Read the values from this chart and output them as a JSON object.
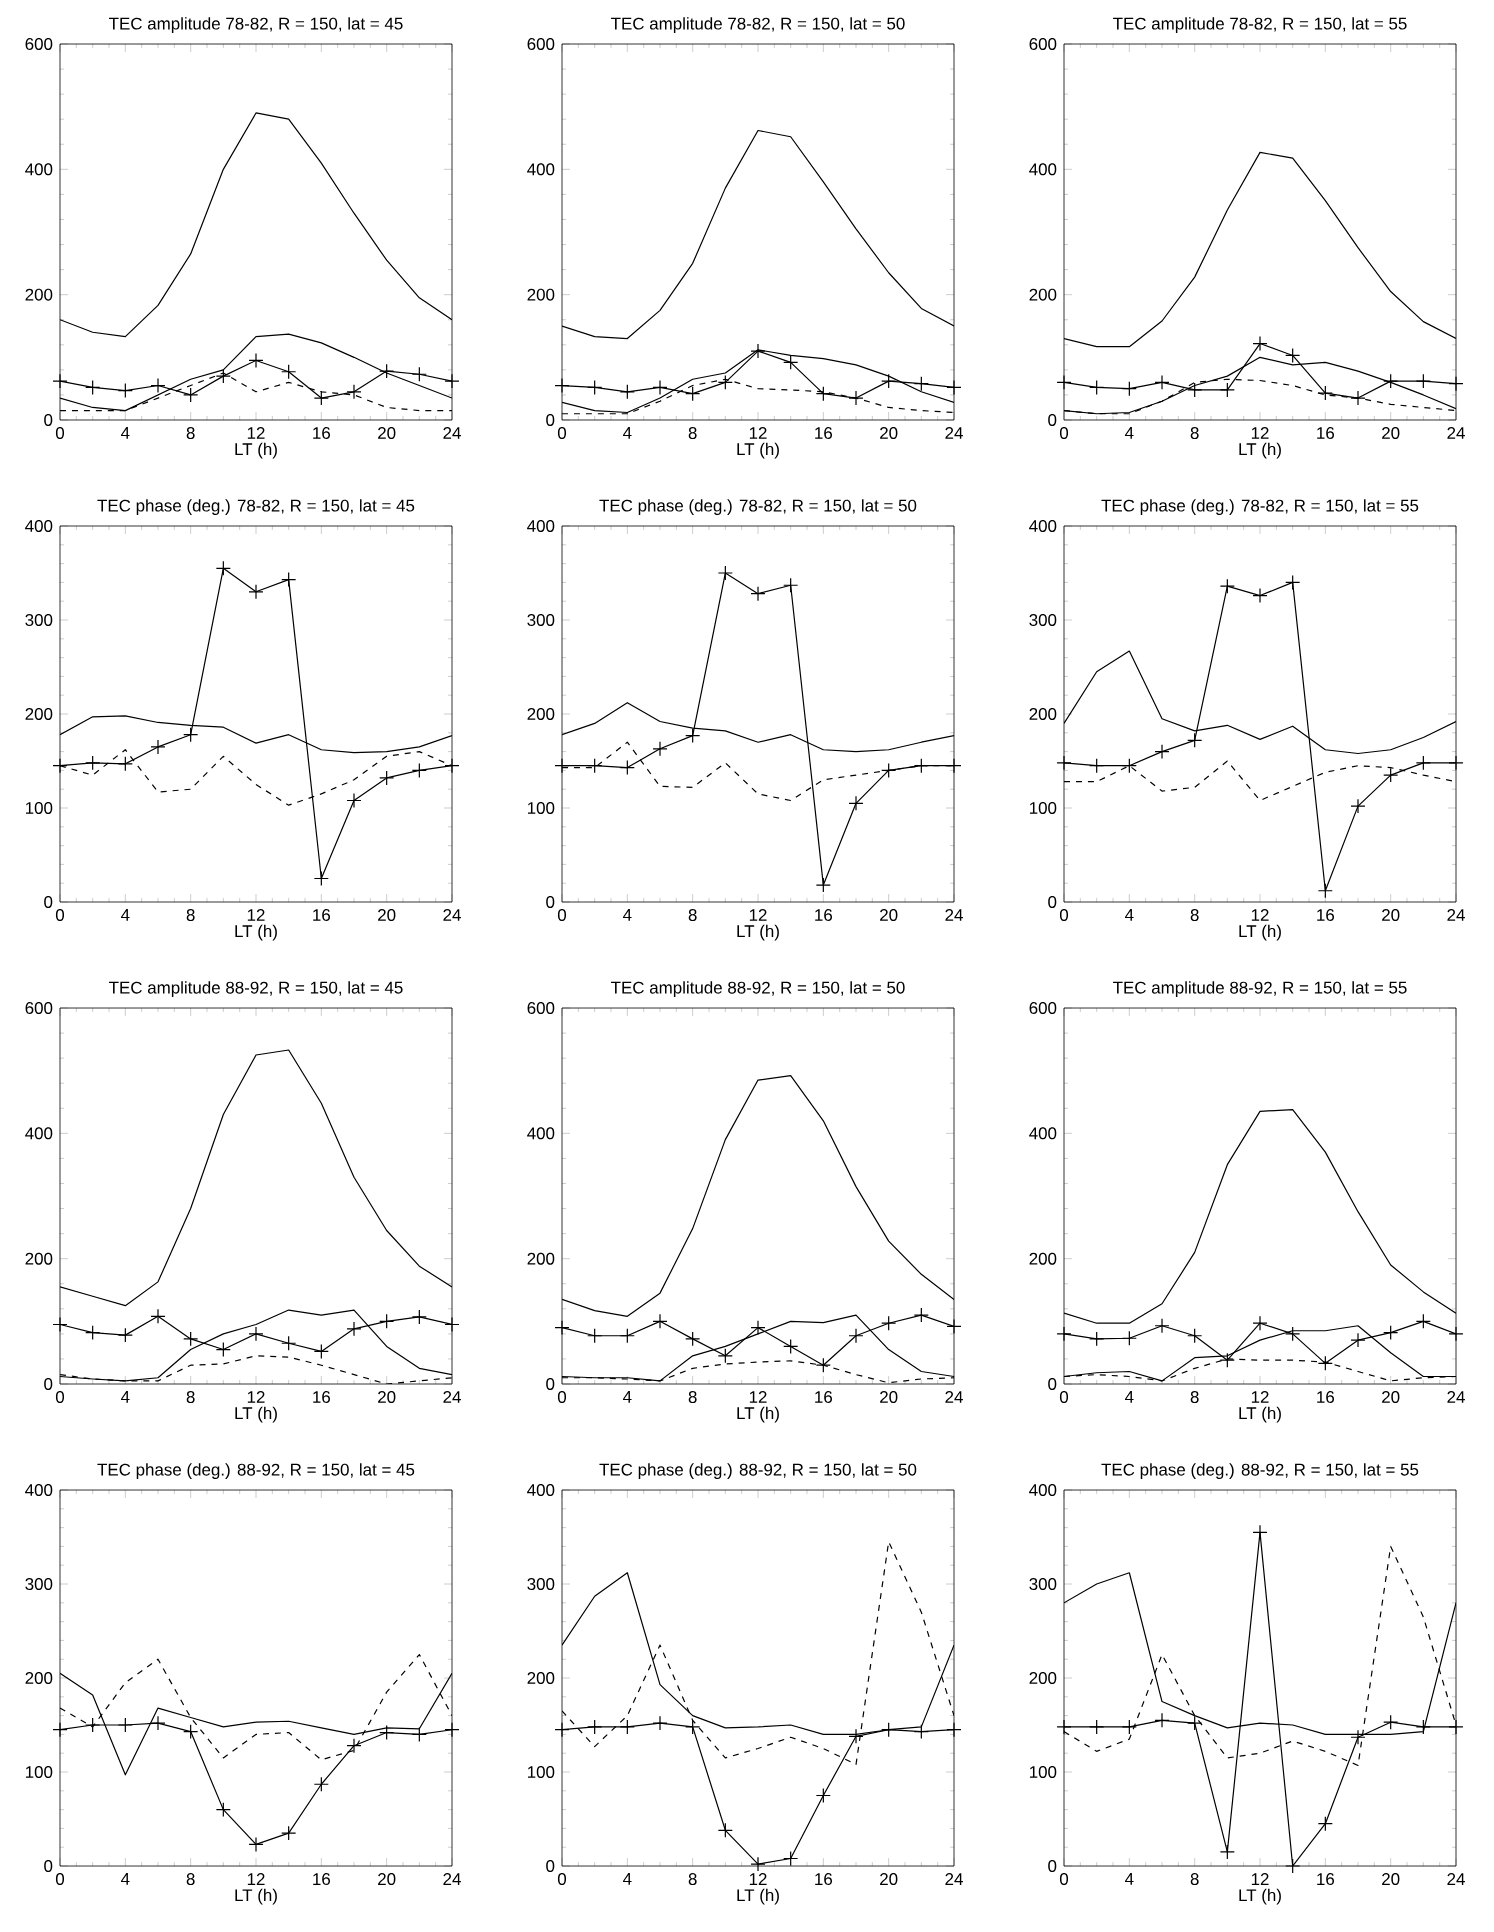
{
  "chart_data": [
    {
      "type": "line",
      "title": "TEC amplitude 78-82, R = 150, lat = 45",
      "xlabel": "LT (h)",
      "x": [
        0,
        2,
        4,
        6,
        8,
        10,
        12,
        14,
        16,
        18,
        20,
        22,
        24
      ],
      "xlim": [
        0,
        24
      ],
      "xticks": [
        0,
        4,
        8,
        12,
        16,
        20,
        24
      ],
      "ylim": [
        0,
        600
      ],
      "yticks": [
        0,
        200,
        400,
        600
      ],
      "series": [
        {
          "color": "#000000",
          "line_style": "solid",
          "marker": "none",
          "values": [
            160,
            140,
            133,
            183,
            265,
            400,
            490,
            480,
            410,
            330,
            255,
            195,
            160
          ]
        },
        {
          "color": "#000000",
          "line_style": "solid",
          "marker": "none",
          "values": [
            35,
            20,
            15,
            40,
            65,
            80,
            133,
            137,
            123,
            100,
            75,
            55,
            35
          ]
        },
        {
          "color": "#000000",
          "line_style": "dashed",
          "marker": "none",
          "values": [
            15,
            15,
            15,
            35,
            55,
            75,
            45,
            60,
            45,
            40,
            20,
            15,
            15
          ]
        },
        {
          "color": "#000000",
          "line_style": "solid",
          "marker": "cross",
          "values": [
            62,
            52,
            47,
            55,
            40,
            70,
            95,
            77,
            35,
            45,
            78,
            73,
            62
          ]
        }
      ]
    },
    {
      "type": "line",
      "title": "TEC amplitude 78-82, R = 150, lat = 50",
      "xlabel": "LT (h)",
      "x": [
        0,
        2,
        4,
        6,
        8,
        10,
        12,
        14,
        16,
        18,
        20,
        22,
        24
      ],
      "xlim": [
        0,
        24
      ],
      "xticks": [
        0,
        4,
        8,
        12,
        16,
        20,
        24
      ],
      "ylim": [
        0,
        600
      ],
      "yticks": [
        0,
        200,
        400,
        600
      ],
      "series": [
        {
          "color": "#000000",
          "line_style": "solid",
          "marker": "none",
          "values": [
            150,
            133,
            130,
            175,
            250,
            370,
            462,
            452,
            380,
            305,
            235,
            178,
            150
          ]
        },
        {
          "color": "#000000",
          "line_style": "solid",
          "marker": "none",
          "values": [
            28,
            15,
            12,
            35,
            65,
            75,
            112,
            103,
            98,
            88,
            70,
            45,
            28
          ]
        },
        {
          "color": "#000000",
          "line_style": "dashed",
          "marker": "none",
          "values": [
            10,
            10,
            10,
            30,
            55,
            65,
            50,
            48,
            45,
            35,
            20,
            15,
            12
          ]
        },
        {
          "color": "#000000",
          "line_style": "solid",
          "marker": "cross",
          "values": [
            55,
            52,
            45,
            52,
            42,
            60,
            110,
            92,
            42,
            35,
            62,
            58,
            52
          ]
        }
      ]
    },
    {
      "type": "line",
      "title": "TEC amplitude 78-82, R = 150, lat = 55",
      "xlabel": "LT (h)",
      "x": [
        0,
        2,
        4,
        6,
        8,
        10,
        12,
        14,
        16,
        18,
        20,
        22,
        24
      ],
      "xlim": [
        0,
        24
      ],
      "xticks": [
        0,
        4,
        8,
        12,
        16,
        20,
        24
      ],
      "ylim": [
        0,
        600
      ],
      "yticks": [
        0,
        200,
        400,
        600
      ],
      "series": [
        {
          "color": "#000000",
          "line_style": "solid",
          "marker": "none",
          "values": [
            130,
            117,
            117,
            158,
            228,
            335,
            427,
            418,
            350,
            275,
            205,
            157,
            130
          ]
        },
        {
          "color": "#000000",
          "line_style": "solid",
          "marker": "none",
          "values": [
            15,
            10,
            12,
            30,
            55,
            70,
            100,
            88,
            92,
            78,
            60,
            40,
            18
          ]
        },
        {
          "color": "#000000",
          "line_style": "dashed",
          "marker": "none",
          "values": [
            15,
            10,
            10,
            30,
            60,
            65,
            63,
            55,
            40,
            35,
            25,
            20,
            15
          ]
        },
        {
          "color": "#000000",
          "line_style": "solid",
          "marker": "cross",
          "values": [
            60,
            52,
            50,
            60,
            48,
            48,
            122,
            103,
            43,
            35,
            62,
            62,
            58
          ]
        }
      ]
    },
    {
      "type": "line",
      "title": "TEC phase (deg.) 78-82, R = 150, lat = 45",
      "xlabel": "LT (h)",
      "x": [
        0,
        2,
        4,
        6,
        8,
        10,
        12,
        14,
        16,
        18,
        20,
        22,
        24
      ],
      "xlim": [
        0,
        24
      ],
      "xticks": [
        0,
        4,
        8,
        12,
        16,
        20,
        24
      ],
      "ylim": [
        0,
        400
      ],
      "yticks": [
        0,
        100,
        200,
        300,
        400
      ],
      "series": [
        {
          "color": "#000000",
          "line_style": "solid",
          "marker": "none",
          "values": [
            178,
            197,
            198,
            191,
            188,
            186,
            169,
            178,
            162,
            159,
            160,
            165,
            177
          ]
        },
        {
          "color": "#000000",
          "line_style": "dashed",
          "marker": "none",
          "values": [
            145,
            135,
            162,
            117,
            120,
            155,
            125,
            103,
            115,
            130,
            155,
            160,
            145
          ]
        },
        {
          "color": "#000000",
          "line_style": "solid",
          "marker": "cross",
          "values": [
            145,
            148,
            147,
            165,
            178,
            355,
            330,
            343,
            25,
            108,
            132,
            140,
            145
          ]
        }
      ]
    },
    {
      "type": "line",
      "title": "TEC phase (deg.) 78-82, R = 150, lat = 50",
      "xlabel": "LT (h)",
      "x": [
        0,
        2,
        4,
        6,
        8,
        10,
        12,
        14,
        16,
        18,
        20,
        22,
        24
      ],
      "xlim": [
        0,
        24
      ],
      "xticks": [
        0,
        4,
        8,
        12,
        16,
        20,
        24
      ],
      "ylim": [
        0,
        400
      ],
      "yticks": [
        0,
        100,
        200,
        300,
        400
      ],
      "series": [
        {
          "color": "#000000",
          "line_style": "solid",
          "marker": "none",
          "values": [
            178,
            190,
            212,
            192,
            185,
            182,
            170,
            178,
            162,
            160,
            162,
            170,
            177
          ]
        },
        {
          "color": "#000000",
          "line_style": "dashed",
          "marker": "none",
          "values": [
            143,
            143,
            170,
            123,
            122,
            148,
            115,
            108,
            130,
            135,
            140,
            145,
            145
          ]
        },
        {
          "color": "#000000",
          "line_style": "solid",
          "marker": "cross",
          "values": [
            145,
            145,
            143,
            163,
            177,
            350,
            328,
            337,
            18,
            105,
            140,
            145,
            145
          ]
        }
      ]
    },
    {
      "type": "line",
      "title": "TEC phase (deg.) 78-82, R = 150, lat = 55",
      "xlabel": "LT (h)",
      "x": [
        0,
        2,
        4,
        6,
        8,
        10,
        12,
        14,
        16,
        18,
        20,
        22,
        24
      ],
      "xlim": [
        0,
        24
      ],
      "xticks": [
        0,
        4,
        8,
        12,
        16,
        20,
        24
      ],
      "ylim": [
        0,
        400
      ],
      "yticks": [
        0,
        100,
        200,
        300,
        400
      ],
      "series": [
        {
          "color": "#000000",
          "line_style": "solid",
          "marker": "none",
          "values": [
            190,
            245,
            267,
            195,
            182,
            188,
            173,
            187,
            162,
            158,
            162,
            175,
            192
          ]
        },
        {
          "color": "#000000",
          "line_style": "dashed",
          "marker": "none",
          "values": [
            128,
            128,
            145,
            118,
            122,
            150,
            108,
            123,
            138,
            145,
            143,
            135,
            128
          ]
        },
        {
          "color": "#000000",
          "line_style": "solid",
          "marker": "cross",
          "values": [
            148,
            145,
            145,
            160,
            172,
            336,
            326,
            340,
            12,
            102,
            135,
            148,
            148
          ]
        }
      ]
    },
    {
      "type": "line",
      "title": "TEC amplitude 88-92, R = 150, lat = 45",
      "xlabel": "LT (h)",
      "x": [
        0,
        2,
        4,
        6,
        8,
        10,
        12,
        14,
        16,
        18,
        20,
        22,
        24
      ],
      "xlim": [
        0,
        24
      ],
      "xticks": [
        0,
        4,
        8,
        12,
        16,
        20,
        24
      ],
      "ylim": [
        0,
        600
      ],
      "yticks": [
        0,
        200,
        400,
        600
      ],
      "series": [
        {
          "color": "#000000",
          "line_style": "solid",
          "marker": "none",
          "values": [
            155,
            140,
            125,
            163,
            280,
            430,
            525,
            533,
            448,
            330,
            245,
            188,
            155
          ]
        },
        {
          "color": "#000000",
          "line_style": "solid",
          "marker": "none",
          "values": [
            12,
            8,
            5,
            10,
            55,
            80,
            95,
            118,
            110,
            118,
            60,
            25,
            15
          ]
        },
        {
          "color": "#000000",
          "line_style": "dashed",
          "marker": "none",
          "values": [
            15,
            8,
            5,
            5,
            30,
            32,
            45,
            43,
            30,
            15,
            0,
            5,
            10
          ]
        },
        {
          "color": "#000000",
          "line_style": "solid",
          "marker": "cross",
          "values": [
            95,
            82,
            78,
            108,
            72,
            55,
            80,
            65,
            52,
            88,
            100,
            107,
            95
          ]
        }
      ]
    },
    {
      "type": "line",
      "title": "TEC amplitude 88-92, R = 150, lat = 50",
      "xlabel": "LT (h)",
      "x": [
        0,
        2,
        4,
        6,
        8,
        10,
        12,
        14,
        16,
        18,
        20,
        22,
        24
      ],
      "xlim": [
        0,
        24
      ],
      "xticks": [
        0,
        4,
        8,
        12,
        16,
        20,
        24
      ],
      "ylim": [
        0,
        600
      ],
      "yticks": [
        0,
        200,
        400,
        600
      ],
      "series": [
        {
          "color": "#000000",
          "line_style": "solid",
          "marker": "none",
          "values": [
            135,
            117,
            108,
            145,
            248,
            390,
            485,
            492,
            420,
            315,
            228,
            175,
            135
          ]
        },
        {
          "color": "#000000",
          "line_style": "solid",
          "marker": "none",
          "values": [
            12,
            10,
            10,
            5,
            45,
            60,
            80,
            100,
            98,
            110,
            55,
            20,
            12
          ]
        },
        {
          "color": "#000000",
          "line_style": "dashed",
          "marker": "none",
          "values": [
            10,
            10,
            8,
            5,
            25,
            32,
            35,
            37,
            30,
            15,
            2,
            8,
            10
          ]
        },
        {
          "color": "#000000",
          "line_style": "solid",
          "marker": "cross",
          "values": [
            90,
            77,
            77,
            100,
            72,
            45,
            90,
            60,
            30,
            77,
            97,
            110,
            92
          ]
        }
      ]
    },
    {
      "type": "line",
      "title": "TEC amplitude 88-92, R = 150, lat = 55",
      "xlabel": "LT (h)",
      "x": [
        0,
        2,
        4,
        6,
        8,
        10,
        12,
        14,
        16,
        18,
        20,
        22,
        24
      ],
      "xlim": [
        0,
        24
      ],
      "xticks": [
        0,
        4,
        8,
        12,
        16,
        20,
        24
      ],
      "ylim": [
        0,
        600
      ],
      "yticks": [
        0,
        200,
        400,
        600
      ],
      "series": [
        {
          "color": "#000000",
          "line_style": "solid",
          "marker": "none",
          "values": [
            113,
            97,
            97,
            128,
            210,
            350,
            435,
            438,
            370,
            275,
            190,
            147,
            113
          ]
        },
        {
          "color": "#000000",
          "line_style": "solid",
          "marker": "none",
          "values": [
            12,
            18,
            20,
            5,
            42,
            45,
            70,
            85,
            85,
            93,
            50,
            12,
            12
          ]
        },
        {
          "color": "#000000",
          "line_style": "dashed",
          "marker": "none",
          "values": [
            12,
            15,
            12,
            5,
            25,
            40,
            38,
            38,
            35,
            20,
            5,
            10,
            12
          ]
        },
        {
          "color": "#000000",
          "line_style": "solid",
          "marker": "cross",
          "values": [
            80,
            72,
            73,
            93,
            77,
            38,
            97,
            80,
            33,
            70,
            82,
            100,
            80
          ]
        }
      ]
    },
    {
      "type": "line",
      "title": "TEC phase (deg.) 88-92, R = 150, lat = 45",
      "xlabel": "LT (h)",
      "x": [
        0,
        2,
        4,
        6,
        8,
        10,
        12,
        14,
        16,
        18,
        20,
        22,
        24
      ],
      "xlim": [
        0,
        24
      ],
      "xticks": [
        0,
        4,
        8,
        12,
        16,
        20,
        24
      ],
      "ylim": [
        0,
        400
      ],
      "yticks": [
        0,
        100,
        200,
        300,
        400
      ],
      "series": [
        {
          "color": "#000000",
          "line_style": "solid",
          "marker": "none",
          "values": [
            205,
            182,
            97,
            168,
            158,
            148,
            153,
            154,
            147,
            140,
            147,
            146,
            205
          ]
        },
        {
          "color": "#000000",
          "line_style": "dashed",
          "marker": "none",
          "values": [
            168,
            148,
            195,
            220,
            158,
            115,
            140,
            142,
            113,
            123,
            185,
            225,
            160
          ]
        },
        {
          "color": "#000000",
          "line_style": "solid",
          "marker": "cross",
          "values": [
            145,
            150,
            150,
            152,
            143,
            60,
            23,
            35,
            87,
            128,
            142,
            140,
            145
          ]
        }
      ]
    },
    {
      "type": "line",
      "title": "TEC phase (deg.) 88-92, R = 150, lat = 50",
      "xlabel": "LT (h)",
      "x": [
        0,
        2,
        4,
        6,
        8,
        10,
        12,
        14,
        16,
        18,
        20,
        22,
        24
      ],
      "xlim": [
        0,
        24
      ],
      "xticks": [
        0,
        4,
        8,
        12,
        16,
        20,
        24
      ],
      "ylim": [
        0,
        400
      ],
      "yticks": [
        0,
        100,
        200,
        300,
        400
      ],
      "series": [
        {
          "color": "#000000",
          "line_style": "solid",
          "marker": "none",
          "values": [
            235,
            287,
            312,
            193,
            160,
            147,
            148,
            150,
            140,
            140,
            145,
            148,
            235
          ]
        },
        {
          "color": "#000000",
          "line_style": "dashed",
          "marker": "none",
          "values": [
            165,
            127,
            160,
            235,
            155,
            115,
            125,
            137,
            125,
            108,
            345,
            270,
            160
          ]
        },
        {
          "color": "#000000",
          "line_style": "solid",
          "marker": "cross",
          "values": [
            145,
            148,
            148,
            152,
            148,
            38,
            2,
            8,
            75,
            138,
            145,
            143,
            145
          ]
        }
      ]
    },
    {
      "type": "line",
      "title": "TEC phase (deg.) 88-92, R = 150, lat = 55",
      "xlabel": "LT (h)",
      "x": [
        0,
        2,
        4,
        6,
        8,
        10,
        12,
        14,
        16,
        18,
        20,
        22,
        24
      ],
      "xlim": [
        0,
        24
      ],
      "xticks": [
        0,
        4,
        8,
        12,
        16,
        20,
        24
      ],
      "ylim": [
        0,
        400
      ],
      "yticks": [
        0,
        100,
        200,
        300,
        400
      ],
      "series": [
        {
          "color": "#000000",
          "line_style": "solid",
          "marker": "none",
          "values": [
            280,
            300,
            312,
            175,
            160,
            147,
            152,
            150,
            140,
            140,
            140,
            143,
            280
          ]
        },
        {
          "color": "#000000",
          "line_style": "dashed",
          "marker": "none",
          "values": [
            143,
            122,
            135,
            225,
            160,
            115,
            120,
            133,
            122,
            107,
            340,
            265,
            150
          ]
        },
        {
          "color": "#000000",
          "line_style": "solid",
          "marker": "cross",
          "values": [
            148,
            148,
            148,
            155,
            152,
            15,
            355,
            0,
            45,
            137,
            153,
            148,
            148
          ]
        }
      ]
    }
  ]
}
